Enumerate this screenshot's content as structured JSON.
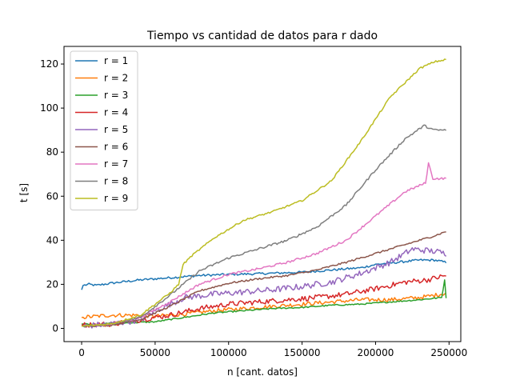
{
  "chart_data": {
    "type": "line",
    "title": "Tiempo vs cantidad de datos para r dado",
    "xlabel": "n [cant. datos]",
    "ylabel": "t [s]",
    "xlim": [
      -12000,
      258000
    ],
    "ylim": [
      -6,
      128
    ],
    "xticks": [
      0,
      50000,
      100000,
      150000,
      200000,
      250000
    ],
    "xtick_labels": [
      "0",
      "50000",
      "100000",
      "150000",
      "200000",
      "250000"
    ],
    "yticks": [
      0,
      20,
      40,
      60,
      80,
      100,
      120
    ],
    "ytick_labels": [
      "0",
      "20",
      "40",
      "60",
      "80",
      "100",
      "120"
    ],
    "grid": false,
    "legend_position": "top-left",
    "series": [
      {
        "name": "r = 1",
        "color": "#1f77b4",
        "noise": 0.5,
        "points": [
          [
            0,
            17.5
          ],
          [
            1000,
            19.5
          ],
          [
            5000,
            20
          ],
          [
            10000,
            19.5
          ],
          [
            20000,
            20.5
          ],
          [
            40000,
            22
          ],
          [
            60000,
            23
          ],
          [
            80000,
            24
          ],
          [
            100000,
            24.5
          ],
          [
            120000,
            24.8
          ],
          [
            150000,
            25.5
          ],
          [
            170000,
            26.5
          ],
          [
            190000,
            27.5
          ],
          [
            200000,
            29
          ],
          [
            215000,
            30
          ],
          [
            230000,
            31
          ],
          [
            240000,
            31
          ],
          [
            248000,
            30
          ]
        ]
      },
      {
        "name": "r = 2",
        "color": "#ff7f0e",
        "noise": 0.9,
        "points": [
          [
            0,
            5
          ],
          [
            10000,
            5.5
          ],
          [
            20000,
            6
          ],
          [
            40000,
            6
          ],
          [
            50000,
            5.5
          ],
          [
            70000,
            6.5
          ],
          [
            90000,
            8
          ],
          [
            110000,
            9
          ],
          [
            130000,
            10
          ],
          [
            150000,
            11
          ],
          [
            170000,
            12
          ],
          [
            190000,
            13
          ],
          [
            210000,
            13
          ],
          [
            230000,
            14
          ],
          [
            240000,
            15
          ],
          [
            248000,
            16
          ]
        ]
      },
      {
        "name": "r = 3",
        "color": "#2ca02c",
        "noise": 0.3,
        "points": [
          [
            0,
            2
          ],
          [
            10000,
            2
          ],
          [
            30000,
            2.5
          ],
          [
            50000,
            3
          ],
          [
            70000,
            5
          ],
          [
            90000,
            7
          ],
          [
            110000,
            8
          ],
          [
            130000,
            9
          ],
          [
            150000,
            9.5
          ],
          [
            170000,
            10.5
          ],
          [
            190000,
            11
          ],
          [
            210000,
            12
          ],
          [
            230000,
            13
          ],
          [
            245000,
            14
          ],
          [
            247000,
            22
          ],
          [
            248000,
            14
          ]
        ]
      },
      {
        "name": "r = 4",
        "color": "#d62728",
        "noise": 1.2,
        "points": [
          [
            0,
            1.5
          ],
          [
            20000,
            2
          ],
          [
            40000,
            4
          ],
          [
            60000,
            6
          ],
          [
            80000,
            9
          ],
          [
            100000,
            11
          ],
          [
            120000,
            12
          ],
          [
            140000,
            13
          ],
          [
            160000,
            14
          ],
          [
            180000,
            15.5
          ],
          [
            200000,
            18
          ],
          [
            220000,
            21
          ],
          [
            235000,
            22
          ],
          [
            248000,
            24
          ]
        ]
      },
      {
        "name": "r = 5",
        "color": "#9467bd",
        "noise": 1.4,
        "points": [
          [
            0,
            1
          ],
          [
            20000,
            2
          ],
          [
            40000,
            4
          ],
          [
            50000,
            8
          ],
          [
            60000,
            11
          ],
          [
            70000,
            14
          ],
          [
            90000,
            15.5
          ],
          [
            110000,
            16.5
          ],
          [
            130000,
            17.5
          ],
          [
            150000,
            19
          ],
          [
            170000,
            21
          ],
          [
            190000,
            25
          ],
          [
            210000,
            30
          ],
          [
            225000,
            36
          ],
          [
            240000,
            35
          ],
          [
            248000,
            34
          ]
        ]
      },
      {
        "name": "r = 6",
        "color": "#8c564b",
        "noise": 0.4,
        "points": [
          [
            0,
            1
          ],
          [
            20000,
            1.5
          ],
          [
            40000,
            4
          ],
          [
            60000,
            10
          ],
          [
            80000,
            17
          ],
          [
            100000,
            20.5
          ],
          [
            120000,
            22.5
          ],
          [
            140000,
            24
          ],
          [
            160000,
            26.5
          ],
          [
            180000,
            30
          ],
          [
            200000,
            34
          ],
          [
            220000,
            38
          ],
          [
            240000,
            42
          ],
          [
            248000,
            44
          ]
        ]
      },
      {
        "name": "r = 7",
        "color": "#e377c2",
        "noise": 0.5,
        "points": [
          [
            0,
            1
          ],
          [
            20000,
            2
          ],
          [
            40000,
            5
          ],
          [
            60000,
            12
          ],
          [
            80000,
            20
          ],
          [
            100000,
            24.5
          ],
          [
            120000,
            27
          ],
          [
            140000,
            30
          ],
          [
            160000,
            34
          ],
          [
            180000,
            40
          ],
          [
            200000,
            51
          ],
          [
            220000,
            62
          ],
          [
            234000,
            66
          ],
          [
            236000,
            75
          ],
          [
            239000,
            68
          ],
          [
            248000,
            68
          ]
        ]
      },
      {
        "name": "r = 8",
        "color": "#7f7f7f",
        "noise": 0.5,
        "points": [
          [
            0,
            1
          ],
          [
            20000,
            2
          ],
          [
            40000,
            5
          ],
          [
            60000,
            15
          ],
          [
            80000,
            26
          ],
          [
            100000,
            32
          ],
          [
            120000,
            36
          ],
          [
            140000,
            40
          ],
          [
            160000,
            46
          ],
          [
            180000,
            56
          ],
          [
            200000,
            72
          ],
          [
            220000,
            86
          ],
          [
            233000,
            92
          ],
          [
            240000,
            90
          ],
          [
            248000,
            90
          ]
        ]
      },
      {
        "name": "r = 9",
        "color": "#bcbd22",
        "noise": 0.4,
        "points": [
          [
            0,
            1
          ],
          [
            20000,
            2
          ],
          [
            40000,
            6
          ],
          [
            60000,
            16
          ],
          [
            66000,
            20
          ],
          [
            69000,
            29
          ],
          [
            75000,
            33
          ],
          [
            90000,
            41
          ],
          [
            110000,
            49
          ],
          [
            130000,
            53
          ],
          [
            150000,
            58
          ],
          [
            170000,
            67
          ],
          [
            190000,
            85
          ],
          [
            210000,
            105
          ],
          [
            230000,
            118
          ],
          [
            240000,
            121
          ],
          [
            248000,
            122
          ]
        ]
      }
    ]
  }
}
